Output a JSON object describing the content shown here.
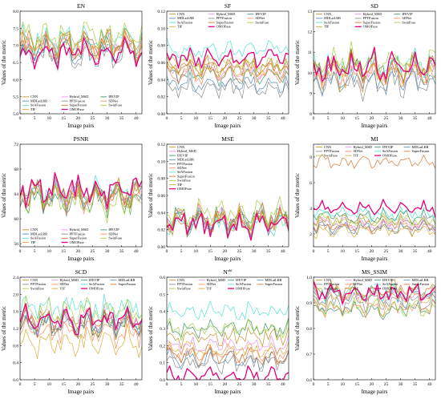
{
  "figure": {
    "xlabel": "Image pairs",
    "ylabel": "Values of the metric"
  },
  "methods": [
    {
      "name": "CNN",
      "color": "#b8860b"
    },
    {
      "name": "Hybrid_MSD",
      "color": "#ee82ee"
    },
    {
      "name": "IFEVIP",
      "color": "#2e8b57"
    },
    {
      "name": "MDLatLRR",
      "color": "#4682b4"
    },
    {
      "name": "PPTFusion",
      "color": "#808080"
    },
    {
      "name": "SDNet",
      "color": "#ff7f50"
    },
    {
      "name": "SeAFusion",
      "color": "#40e0d0"
    },
    {
      "name": "SuperFusion",
      "color": "#d2691e"
    },
    {
      "name": "SwinFuse",
      "color": "#9acd32"
    },
    {
      "name": "TIF",
      "color": "#daa520"
    },
    {
      "name": "OMOFuse",
      "color": "#e6007e"
    }
  ],
  "chart_data": [
    {
      "type": "line",
      "title": "EN",
      "xlim": [
        0,
        42
      ],
      "xticks": [
        0,
        5,
        10,
        15,
        20,
        25,
        30,
        35,
        40
      ],
      "ylim": [
        5.0,
        8.0
      ],
      "yticks": [
        5.0,
        5.5,
        6.0,
        6.5,
        7.0,
        7.5,
        8.0
      ],
      "ytick_labels": [
        "5.0",
        "5.5",
        "6.0",
        "6.5",
        "7.0",
        "7.5",
        "8.0"
      ],
      "legend": "bottom-left",
      "legend_cols": 3,
      "series_base": {
        "CNN": 7.1,
        "Hybrid_MSD": 7.0,
        "IFEVIP": 6.9,
        "MDLatLRR": 6.8,
        "PPTFusion": 6.7,
        "SDNet": 6.9,
        "SeAFusion": 7.2,
        "SuperFusion": 7.1,
        "SwinFuse": 7.3,
        "TIF": 7.0,
        "OMOFuse": 6.8
      },
      "amplitude": 0.45
    },
    {
      "type": "line",
      "title": "SF",
      "xlim": [
        0,
        42
      ],
      "xticks": [
        0,
        5,
        10,
        15,
        20,
        25,
        30,
        35,
        40
      ],
      "ylim": [
        0.0,
        0.12
      ],
      "yticks": [
        0.0,
        0.02,
        0.04,
        0.06,
        0.08,
        0.1,
        0.12
      ],
      "ytick_labels": [
        "0.00",
        "0.02",
        "0.04",
        "0.06",
        "0.08",
        "0.10",
        "0.12"
      ],
      "legend": "top",
      "legend_cols": 3,
      "series_base": {
        "CNN": 0.055,
        "Hybrid_MSD": 0.05,
        "IFEVIP": 0.045,
        "MDLatLRR": 0.035,
        "PPTFusion": 0.03,
        "SDNet": 0.045,
        "SeAFusion": 0.075,
        "SuperFusion": 0.055,
        "SwinFuse": 0.06,
        "TIF": 0.05,
        "OMOFuse": 0.065
      },
      "amplitude": 0.012
    },
    {
      "type": "line",
      "title": "SD",
      "xlim": [
        0,
        42
      ],
      "xticks": [
        0,
        5,
        10,
        15,
        20,
        25,
        30,
        35,
        40
      ],
      "ylim": [
        8,
        13
      ],
      "yticks": [
        8,
        9,
        10,
        11,
        12,
        13
      ],
      "ytick_labels": [
        "8",
        "9",
        "10",
        "11",
        "12",
        "13"
      ],
      "legend": "top",
      "legend_cols": 3,
      "series_base": {
        "CNN": 10.2,
        "Hybrid_MSD": 10.0,
        "IFEVIP": 10.3,
        "MDLatLRR": 9.6,
        "PPTFusion": 9.5,
        "SDNet": 10.1,
        "SeAFusion": 10.4,
        "SuperFusion": 10.2,
        "SwinFuse": 10.6,
        "TIF": 9.9,
        "OMOFuse": 10.3
      },
      "amplitude": 0.8
    },
    {
      "type": "line",
      "title": "PSNR",
      "xlim": [
        0,
        42
      ],
      "xticks": [
        0,
        5,
        10,
        15,
        20,
        25,
        30,
        35,
        40
      ],
      "ylim": [
        55.5,
        72
      ],
      "yticks": [
        56,
        60,
        64,
        68,
        72
      ],
      "ytick_labels": [
        "56",
        "60",
        "64",
        "68",
        "72"
      ],
      "legend": "bottom-left",
      "legend_cols": 3,
      "series_base": {
        "CNN": 64.0,
        "Hybrid_MSD": 63.8,
        "IFEVIP": 63.0,
        "MDLatLRR": 64.2,
        "PPTFusion": 63.5,
        "SDNet": 63.4,
        "SeAFusion": 64.3,
        "SuperFusion": 64.0,
        "SwinFuse": 62.5,
        "TIF": 63.9,
        "OMOFuse": 64.4
      },
      "amplitude": 2.6
    },
    {
      "type": "line",
      "title": "MSE",
      "xlim": [
        0,
        42
      ],
      "xticks": [
        0,
        5,
        10,
        15,
        20,
        25,
        30,
        35,
        40
      ],
      "ylim": [
        0.0,
        0.12
      ],
      "yticks": [
        0.0,
        0.02,
        0.04,
        0.06,
        0.08,
        0.1,
        0.12
      ],
      "ytick_labels": [
        "0.00",
        "0.02",
        "0.04",
        "0.06",
        "0.08",
        "0.10",
        "0.12"
      ],
      "legend": "top-left",
      "legend_cols": 1,
      "series_base": {
        "CNN": 0.03,
        "Hybrid_MSD": 0.031,
        "IFEVIP": 0.035,
        "MDLatLRR": 0.028,
        "PPTFusion": 0.03,
        "SDNet": 0.032,
        "SeAFusion": 0.027,
        "SuperFusion": 0.03,
        "SwinFuse": 0.04,
        "TIF": 0.029,
        "OMOFuse": 0.026
      },
      "amplitude": 0.018
    },
    {
      "type": "line",
      "title": "MI",
      "xlim": [
        0,
        42
      ],
      "xticks": [
        0,
        5,
        10,
        15,
        20,
        25,
        30,
        35,
        40
      ],
      "ylim": [
        1,
        9
      ],
      "yticks": [
        2,
        4,
        6,
        8
      ],
      "ytick_labels": [
        "2",
        "4",
        "6",
        "8"
      ],
      "legend": "top",
      "legend_cols": 4,
      "series_base": {
        "CNN": 3.0,
        "Hybrid_MSD": 2.8,
        "IFEVIP": 3.4,
        "MDLatLRR": 2.5,
        "PPTFusion": 2.4,
        "SDNet": 2.6,
        "SeAFusion": 3.6,
        "SuperFusion": 7.6,
        "SwinFuse": 3.0,
        "TIF": 2.2,
        "OMOFuse": 4.0
      },
      "amplitude": 0.6
    },
    {
      "type": "line",
      "title": "SCD",
      "xlim": [
        0,
        42
      ],
      "xticks": [
        0,
        5,
        10,
        15,
        20,
        25,
        30,
        35,
        40
      ],
      "ylim": [
        0.0,
        2.4
      ],
      "yticks": [
        0.0,
        0.4,
        0.8,
        1.2,
        1.6,
        2.0,
        2.4
      ],
      "ytick_labels": [
        "0.0",
        "0.4",
        "0.8",
        "1.2",
        "1.6",
        "2.0",
        "2.4"
      ],
      "legend": "top",
      "legend_cols": 4,
      "series_base": {
        "CNN": 1.3,
        "Hybrid_MSD": 1.4,
        "IFEVIP": 1.3,
        "MDLatLRR": 1.35,
        "PPTFusion": 1.3,
        "SDNet": 1.1,
        "SeAFusion": 1.7,
        "SuperFusion": 1.4,
        "SwinFuse": 1.6,
        "TIF": 0.9,
        "OMOFuse": 1.4
      },
      "amplitude": 0.35
    },
    {
      "type": "line",
      "title": "N^abf",
      "xlim": [
        0,
        42
      ],
      "xticks": [
        0,
        5,
        10,
        15,
        20,
        25,
        30,
        35,
        40
      ],
      "ylim": [
        0.0,
        0.6
      ],
      "yticks": [
        0.0,
        0.1,
        0.2,
        0.3,
        0.4,
        0.5,
        0.6
      ],
      "ytick_labels": [
        "0.0",
        "0.1",
        "0.2",
        "0.3",
        "0.4",
        "0.5",
        "0.6"
      ],
      "legend": "top",
      "legend_cols": 4,
      "series_base": {
        "CNN": 0.25,
        "Hybrid_MSD": 0.2,
        "IFEVIP": 0.3,
        "MDLatLRR": 0.12,
        "PPTFusion": 0.1,
        "SDNet": 0.15,
        "SeAFusion": 0.4,
        "SuperFusion": 0.14,
        "SwinFuse": 0.3,
        "TIF": 0.18,
        "OMOFuse": 0.02
      },
      "amplitude": 0.06
    },
    {
      "type": "line",
      "title": "MS_SSIM",
      "xlim": [
        0,
        42
      ],
      "xticks": [
        0,
        5,
        10,
        15,
        20,
        25,
        30,
        35,
        40
      ],
      "ylim": [
        0.6,
        1.0
      ],
      "yticks": [
        0.6,
        0.7,
        0.8,
        0.9,
        1.0
      ],
      "ytick_labels": [
        "0.6",
        "0.7",
        "0.8",
        "0.9",
        "1.0"
      ],
      "legend": "top",
      "legend_cols": 4,
      "series_base": {
        "CNN": 0.94,
        "Hybrid_MSD": 0.93,
        "IFEVIP": 0.87,
        "MDLatLRR": 0.92,
        "PPTFusion": 0.9,
        "SDNet": 0.88,
        "SeAFusion": 0.94,
        "SuperFusion": 0.95,
        "SwinFuse": 0.88,
        "TIF": 0.92,
        "OMOFuse": 0.94
      },
      "amplitude": 0.04
    }
  ]
}
